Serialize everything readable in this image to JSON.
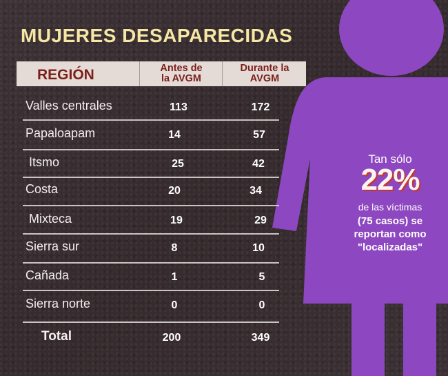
{
  "title": "MUJERES DESAPARECIDAS",
  "table": {
    "headers": {
      "region": "REGIÓN",
      "before_line1": "Antes de",
      "before_line2": "la AVGM",
      "during_line1": "Durante la",
      "during_line2": "AVGM"
    },
    "rows": [
      {
        "region": "Valles centrales",
        "before": "113",
        "during": "172"
      },
      {
        "region": "Papaloapam",
        "before": "14",
        "during": "57"
      },
      {
        "region": "Itsmo",
        "before": "25",
        "during": "42"
      },
      {
        "region": "Costa",
        "before": "20",
        "during": "34"
      },
      {
        "region": "Mixteca",
        "before": "19",
        "during": "29"
      },
      {
        "region": "Sierra sur",
        "before": "8",
        "during": "10"
      },
      {
        "region": "Cañada",
        "before": "1",
        "during": "5"
      },
      {
        "region": "Sierra norte",
        "before": "0",
        "during": "0"
      }
    ],
    "total": {
      "label": "Total",
      "before": "200",
      "during": "349"
    }
  },
  "stat": {
    "line1": "Tan sólo",
    "percent": "22%",
    "line2": "de las víctimas",
    "line3": "(75 casos) se",
    "line4": "reportan como",
    "line5": "\"localizadas\""
  },
  "colors": {
    "figure": "#8d47c0",
    "title": "#f6e7a4",
    "header_text": "#7a1f1a"
  }
}
